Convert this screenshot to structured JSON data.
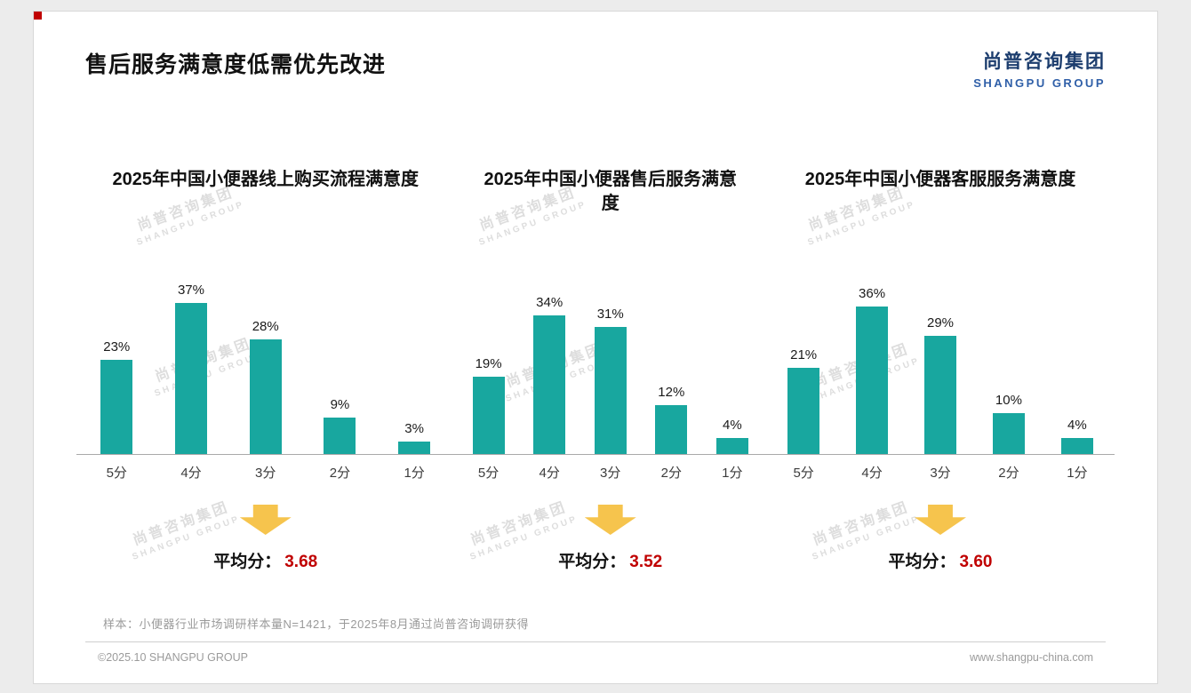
{
  "header": {
    "title": "售后服务满意度低需优先改进"
  },
  "logo": {
    "cn": "尚普咨询集团",
    "en": "SHANGPU GROUP"
  },
  "watermark": {
    "cn": "尚普咨询集团",
    "en": "SHANGPU GROUP"
  },
  "colors": {
    "bar": "#18A79F",
    "arrow": "#F6C44D",
    "avg_value": "#C00000",
    "logo_cn_blue": "#1C3D6E",
    "logo_en_blue": "#2F5FA8"
  },
  "chart_data": [
    {
      "type": "bar",
      "title": "2025年中国小便器线上购买流程满意度",
      "categories": [
        "5分",
        "4分",
        "3分",
        "2分",
        "1分"
      ],
      "values": [
        23,
        37,
        28,
        9,
        3
      ],
      "value_labels": [
        "23%",
        "37%",
        "28%",
        "9%",
        "3%"
      ],
      "xlabel": "",
      "ylabel": "",
      "ylim": [
        0,
        40
      ],
      "grid": false,
      "average_label": "平均分：",
      "average_value": "3.68"
    },
    {
      "type": "bar",
      "title": "2025年中国小便器售后服务满意度",
      "categories": [
        "5分",
        "4分",
        "3分",
        "2分",
        "1分"
      ],
      "values": [
        19,
        34,
        31,
        12,
        4
      ],
      "value_labels": [
        "19%",
        "34%",
        "31%",
        "12%",
        "4%"
      ],
      "xlabel": "",
      "ylabel": "",
      "ylim": [
        0,
        40
      ],
      "grid": false,
      "average_label": "平均分：",
      "average_value": "3.52"
    },
    {
      "type": "bar",
      "title": "2025年中国小便器客服服务满意度",
      "categories": [
        "5分",
        "4分",
        "3分",
        "2分",
        "1分"
      ],
      "values": [
        21,
        36,
        29,
        10,
        4
      ],
      "value_labels": [
        "21%",
        "36%",
        "29%",
        "10%",
        "4%"
      ],
      "xlabel": "",
      "ylabel": "",
      "ylim": [
        0,
        40
      ],
      "grid": false,
      "average_label": "平均分：",
      "average_value": "3.60"
    }
  ],
  "footer": {
    "sample_note": "样本：小便器行业市场调研样本量N=1421，于2025年8月通过尚普咨询调研获得",
    "copyright": "©2025.10 SHANGPU GROUP",
    "website": "www.shangpu-china.com"
  }
}
